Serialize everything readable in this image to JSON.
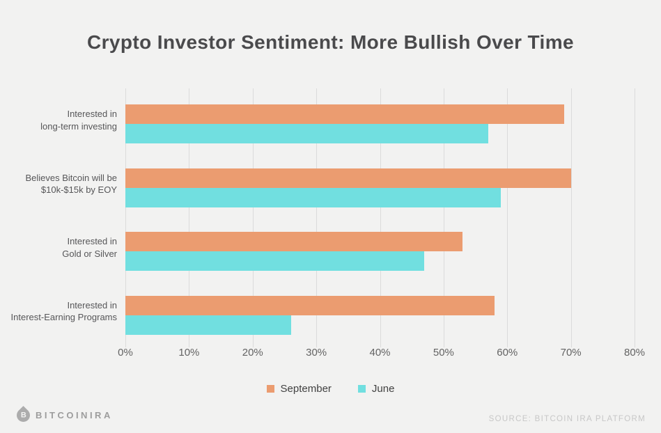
{
  "title": "Crypto Investor Sentiment: More Bullish Over Time",
  "chart_data": {
    "type": "bar",
    "orientation": "horizontal",
    "title": "Crypto Investor Sentiment: More Bullish Over Time",
    "categories": [
      [
        "Interested in",
        "long-term investing"
      ],
      [
        "Believes Bitcoin will be",
        "$10k-$15k by EOY"
      ],
      [
        "Interested in",
        "Gold or Silver"
      ],
      [
        "Interested in",
        "Interest-Earning Programs"
      ]
    ],
    "series": [
      {
        "name": "September",
        "color": "#EB9C70",
        "values": [
          69,
          70,
          53,
          58
        ]
      },
      {
        "name": "June",
        "color": "#71DFE0",
        "values": [
          57,
          59,
          47,
          26
        ]
      }
    ],
    "xlabel": "",
    "ylabel": "",
    "xlim": [
      0,
      80
    ],
    "x_ticks": [
      "0%",
      "10%",
      "20%",
      "30%",
      "40%",
      "50%",
      "60%",
      "70%",
      "80%"
    ],
    "grid": true,
    "legend_position": "bottom"
  },
  "legend": {
    "items": [
      {
        "label": "September",
        "color": "#EB9C70"
      },
      {
        "label": "June",
        "color": "#71DFE0"
      }
    ]
  },
  "footer": {
    "brand": "BITCOINIRA",
    "brand_icon_letter": "B",
    "source": "SOURCE: BITCOIN IRA PLATFORM"
  },
  "colors": {
    "background": "#F2F2F1",
    "gridline": "#DBDBDB",
    "title_text": "#4A4A4C",
    "axis_text": "#636363",
    "category_text": "#565658",
    "september_bar": "#EB9C70",
    "june_bar": "#71DFE0"
  }
}
